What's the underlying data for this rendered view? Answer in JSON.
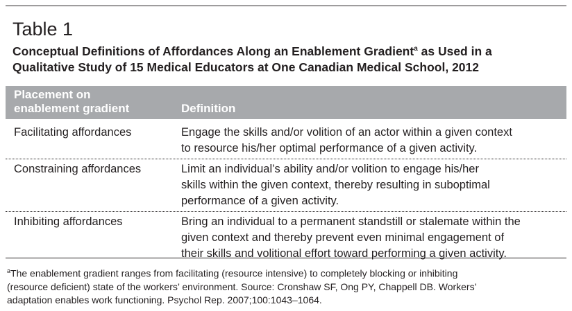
{
  "table_label": "Table 1",
  "title": {
    "lines": [
      [
        "Conceptual Definitions of Affordances Along an Enablement Gradient",
        "a",
        " as Used in a"
      ],
      [
        "Qualitative Study of 15 Medical Educators at One Canadian Medical School, 2012"
      ]
    ]
  },
  "table": {
    "header": [
      [
        "Placement on",
        "enablement gradient"
      ],
      [
        "Definition"
      ]
    ],
    "rows": [
      {
        "placement": "Facilitating affordances",
        "definition": [
          "Engage the skills and/or volition of an actor within a given context",
          "to resource his/her optimal performance of a given activity."
        ]
      },
      {
        "placement": "Constraining affordances",
        "definition": [
          "Limit an individual’s ability and/or volition to engage his/her",
          "skills within the given context, thereby resulting in suboptimal",
          "performance of a given activity."
        ]
      },
      {
        "placement": "Inhibiting affordances",
        "definition": [
          "Bring an individual to a permanent standstill or stalemate within the",
          "given context and thereby prevent even minimal engagement of",
          "their skills and volitional effort toward performing a given activity."
        ]
      }
    ]
  },
  "footnote": {
    "mark": "a",
    "lines": [
      "The enablement gradient ranges from facilitating (resource intensive) to completely blocking or inhibiting",
      "(resource deficient) state of the workers’ environment. Source: Cronshaw SF, Ong PY, Chappell DB. Workers’",
      "adaptation enables work functioning. Psychol Rep. 2007;100:1043–1064."
    ]
  }
}
